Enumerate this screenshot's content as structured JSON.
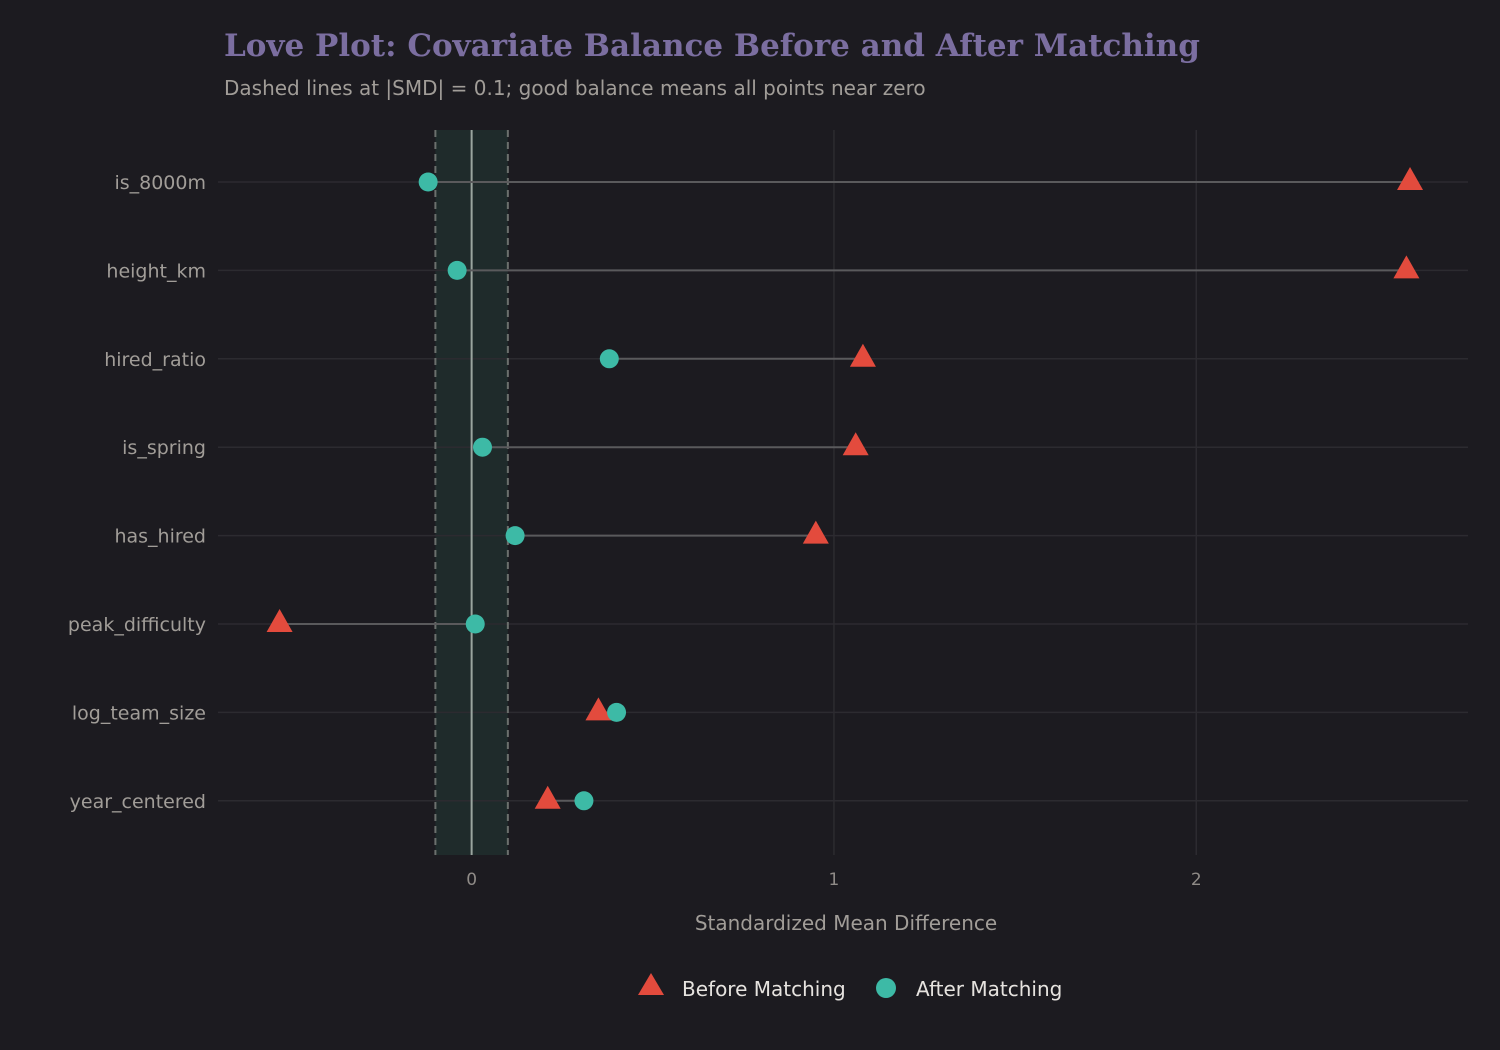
{
  "chart_data": {
    "type": "scatter",
    "title": "Love Plot: Covariate Balance Before and After Matching",
    "subtitle": "Dashed lines at |SMD| = 0.1; good balance means all points near zero",
    "xlabel": "Standardized Mean Difference",
    "ylabel": "",
    "xlim": [
      -0.7,
      2.75
    ],
    "xticks": [
      0,
      1,
      2
    ],
    "xtick_labels": [
      "0",
      "1",
      "2"
    ],
    "threshold": 0.1,
    "grid": true,
    "legend_position": "bottom",
    "categories": [
      "is_8000m",
      "height_km",
      "hired_ratio",
      "is_spring",
      "has_hired",
      "peak_difficulty",
      "log_team_size",
      "year_centered"
    ],
    "series": [
      {
        "name": "Before Matching",
        "marker": "triangle",
        "color": "#e34b3d",
        "values": [
          2.59,
          2.58,
          1.08,
          1.06,
          0.95,
          -0.53,
          0.35,
          0.21
        ]
      },
      {
        "name": "After Matching",
        "marker": "circle",
        "color": "#3dbaa6",
        "values": [
          -0.12,
          -0.04,
          0.38,
          0.03,
          0.12,
          0.01,
          0.4,
          0.31
        ]
      }
    ]
  }
}
